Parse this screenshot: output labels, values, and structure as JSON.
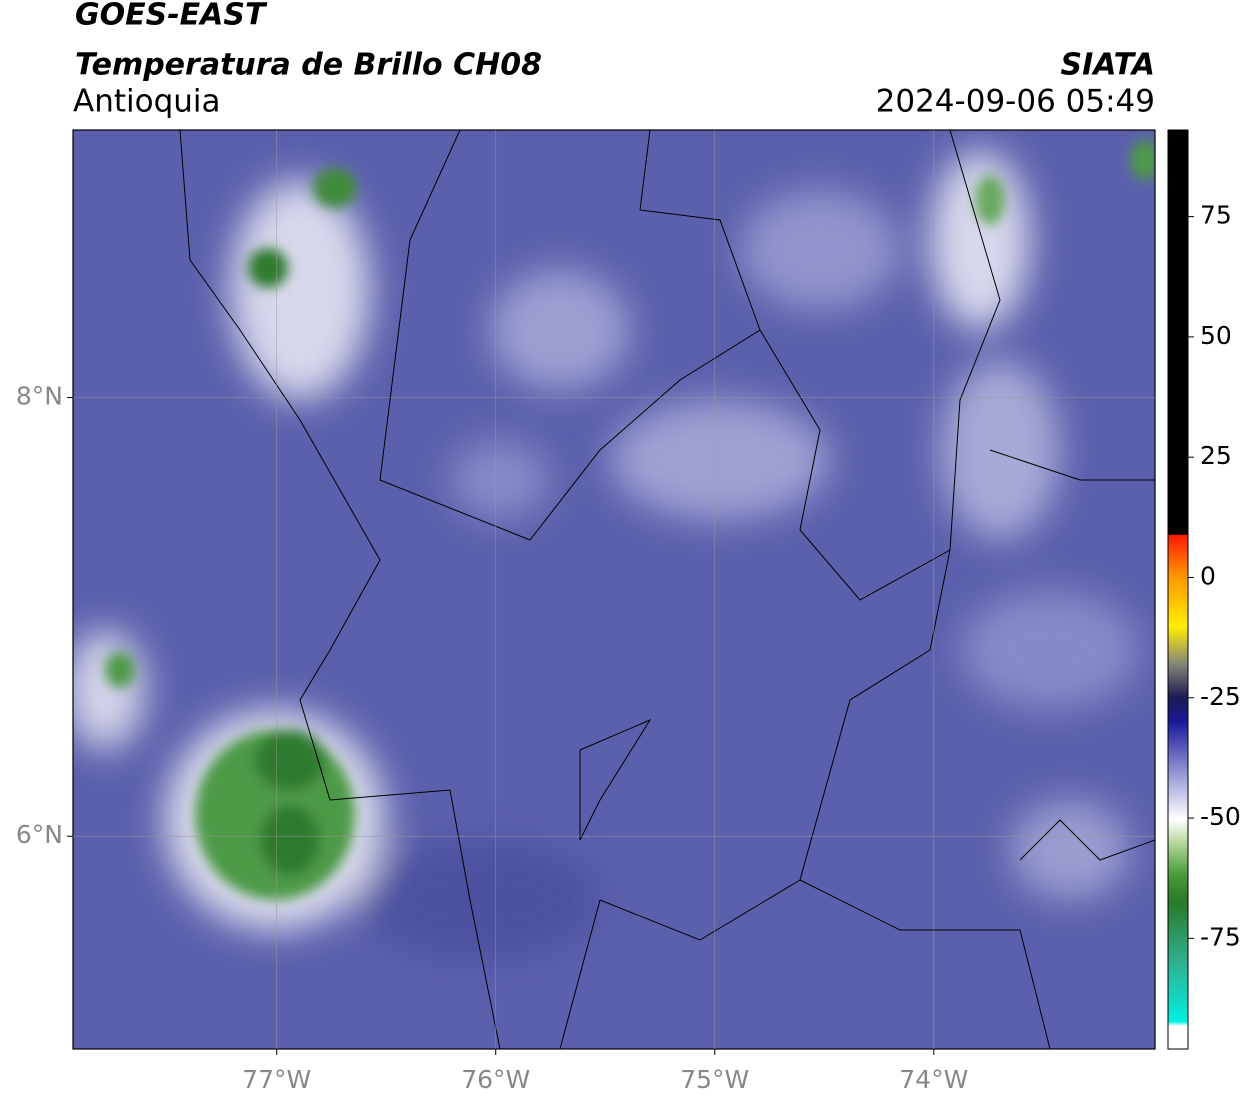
{
  "header": {
    "satellite": "GOES-EAST",
    "product": "Temperatura de Brillo CH08",
    "region": "Antioquia",
    "source": "SIATA",
    "datetime": "2024-09-06 05:49"
  },
  "map": {
    "xlim": [
      -77.93,
      -72.99
    ],
    "ylim": [
      5.03,
      9.22
    ],
    "xticks": [
      {
        "value": -77,
        "label": "77°W"
      },
      {
        "value": -76,
        "label": "76°W"
      },
      {
        "value": -75,
        "label": "75°W"
      },
      {
        "value": -74,
        "label": "74°W"
      }
    ],
    "yticks": [
      {
        "value": 8,
        "label": "8°N"
      },
      {
        "value": 6,
        "label": "6°N"
      }
    ]
  },
  "colorbar": {
    "lim": [
      -98,
      93
    ],
    "ticks": [
      75,
      50,
      25,
      0,
      -25,
      -50,
      -75
    ]
  }
}
